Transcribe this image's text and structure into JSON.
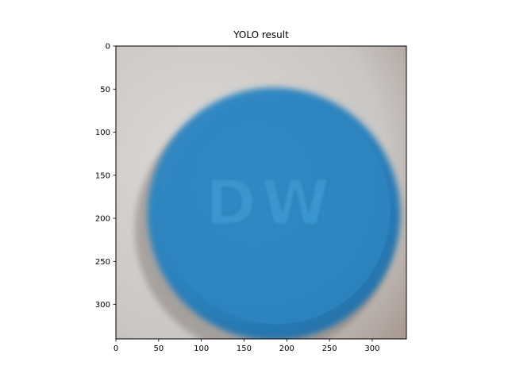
{
  "chart_data": {
    "type": "image",
    "title": "YOLO result",
    "xlabel": "",
    "ylabel": "",
    "xlim": [
      0,
      340
    ],
    "ylim": [
      340,
      0
    ],
    "xticks": [
      0,
      50,
      100,
      150,
      200,
      250,
      300
    ],
    "yticks": [
      0,
      50,
      100,
      150,
      200,
      250,
      300
    ],
    "image": {
      "subject": "blue round pill",
      "imprint": "DW",
      "pill_color": "#2f86c0",
      "background_color": "#cdcac8",
      "pill_center": [
        185,
        195
      ],
      "pill_radius": 148
    }
  }
}
